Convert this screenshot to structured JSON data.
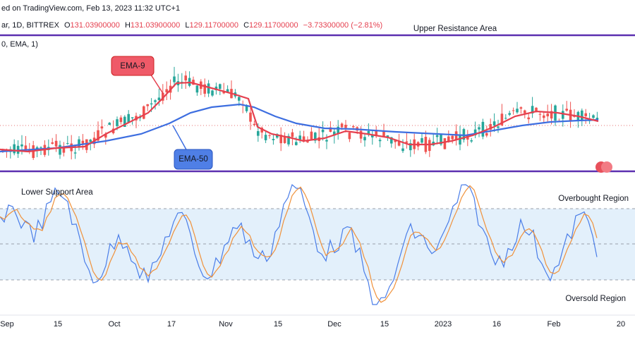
{
  "header": {
    "source": "ed on TradingView.com, Feb 13, 2023 11:32 UTC+1",
    "symbol": "ar, 1D, BITTREX",
    "ohlc": [
      {
        "label": "O",
        "value": "131.03900000"
      },
      {
        "label": "H",
        "value": "131.03900000"
      },
      {
        "label": "L",
        "value": "129.11700000"
      },
      {
        "label": "C",
        "value": "129.11700000"
      }
    ],
    "change": "−3.73300000 (−2.81%)",
    "indicator": "0, EMA, 1)"
  },
  "annotations": {
    "upper": "Upper Resistance Area",
    "ema9": "EMA-9",
    "ema50": "EMA-50",
    "lower": "Lower Support Area",
    "overbought": "Overbought Region",
    "oversold": "Oversold Region"
  },
  "x_axis": [
    "Sep",
    "15",
    "Oct",
    "17",
    "Nov",
    "15",
    "Dec",
    "15",
    "2023",
    "16",
    "Feb",
    "20"
  ]
}
